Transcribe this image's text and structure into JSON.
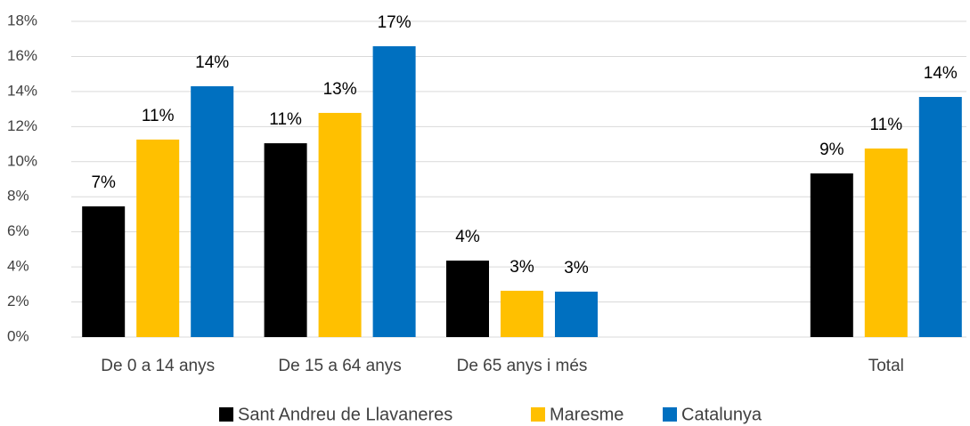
{
  "chart_data": {
    "type": "bar",
    "categories": [
      "De 0 a 14 anys",
      "De 15 a 64 anys",
      "De 65 anys i més",
      null,
      "Total"
    ],
    "series": [
      {
        "name": "Sant Andreu de Llavaneres",
        "color": "#000000",
        "values": [
          7.45,
          11.05,
          4.36,
          null,
          9.33
        ],
        "value_labels": [
          "7%",
          "11%",
          "4%",
          null,
          "9%"
        ]
      },
      {
        "name": "Maresme",
        "color": "#ffc000",
        "values": [
          11.26,
          12.78,
          2.64,
          null,
          10.75
        ],
        "value_labels": [
          "11%",
          "13%",
          "3%",
          null,
          "11%"
        ]
      },
      {
        "name": "Catalunya",
        "color": "#0070c0",
        "values": [
          14.3,
          16.58,
          2.59,
          null,
          13.69
        ],
        "value_labels": [
          "14%",
          "17%",
          "3%",
          null,
          "14%"
        ]
      }
    ],
    "ylim": [
      0,
      18
    ],
    "yticks": [
      {
        "value": 0,
        "label": "0%"
      },
      {
        "value": 2,
        "label": "2%"
      },
      {
        "value": 4,
        "label": "4%"
      },
      {
        "value": 6,
        "label": "6%"
      },
      {
        "value": 8,
        "label": "8%"
      },
      {
        "value": 10,
        "label": "10%"
      },
      {
        "value": 12,
        "label": "12%"
      },
      {
        "value": 14,
        "label": "14%"
      },
      {
        "value": 16,
        "label": "16%"
      },
      {
        "value": 18,
        "label": "18%"
      }
    ],
    "grid": true,
    "legend": "bottom"
  }
}
